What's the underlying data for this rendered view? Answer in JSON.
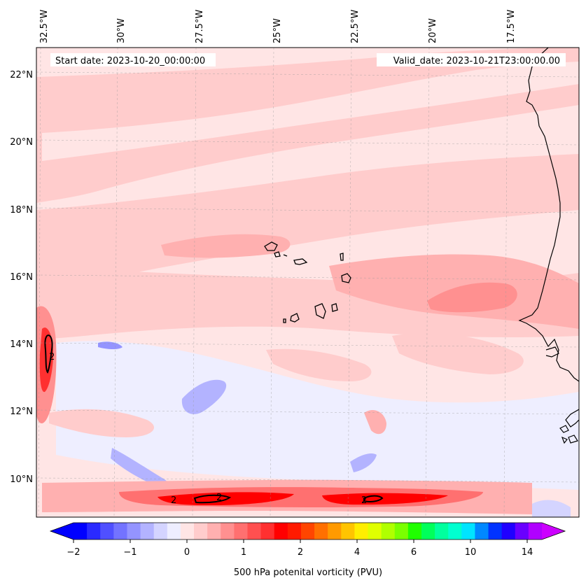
{
  "map": {
    "start_label": "Start date: 2023-10-20_00:00:00",
    "valid_label": "Valid_date: 2023-10-21T23:00:00.00",
    "lon_ticks": [
      "32.5°W",
      "30°W",
      "27.5°W",
      "25°W",
      "22.5°W",
      "20°W",
      "17.5°W"
    ],
    "lat_ticks": [
      "22°N",
      "20°N",
      "18°N",
      "16°N",
      "14°N",
      "12°N",
      "10°N"
    ],
    "contour_labels": [
      "2",
      "2",
      "2",
      "2"
    ]
  },
  "colorbar": {
    "label": "500 hPa potenital vorticity (PVU)",
    "tick_labels": [
      "−2",
      "−1",
      "0",
      "1",
      "2",
      "4",
      "6",
      "10",
      "14"
    ],
    "colors": [
      "#0000ff",
      "#2a2aff",
      "#5050ff",
      "#7373ff",
      "#9494ff",
      "#b3b3ff",
      "#d4d4ff",
      "#eeeeff",
      "#ffe5e5",
      "#ffcccc",
      "#ffb0b0",
      "#ff9090",
      "#ff7070",
      "#ff5050",
      "#ff3030",
      "#ff0000",
      "#ff1a00",
      "#ff4500",
      "#ff7000",
      "#ff9a00",
      "#ffc400",
      "#ffee00",
      "#e0ff00",
      "#b0ff00",
      "#7aff00",
      "#20ff00",
      "#00ff5a",
      "#00ff9e",
      "#00ffd0",
      "#00e4ff",
      "#0088ff",
      "#0033ff",
      "#2000ff",
      "#6a00ff",
      "#b000ff"
    ],
    "extend_low_color": "#0000ff",
    "extend_high_color": "#cc00ff"
  }
}
